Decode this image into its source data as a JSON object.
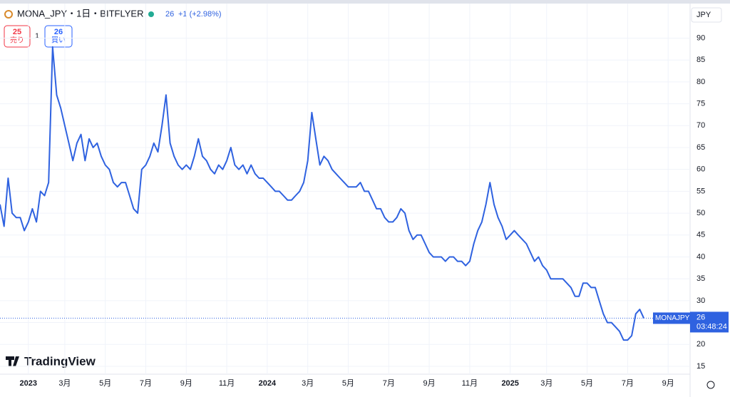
{
  "chart_data": {
    "type": "line",
    "symbol": "MONA_JPY・1日・BITFLYER",
    "last_price": 26,
    "change": "+1 (+2.98%)",
    "sell": {
      "price": 25,
      "label": "売り"
    },
    "spread": 1,
    "buy": {
      "price": 26,
      "label": "買い"
    },
    "currency": "JPY",
    "price_tag": {
      "name": "MONAJPY",
      "countdown": "03:48:24"
    },
    "logo": "TradingView",
    "color": "#2f62e0",
    "categories": [
      null,
      null,
      null,
      null,
      null,
      null,
      null,
      "2023",
      null,
      null,
      null,
      null,
      null,
      null,
      null,
      null,
      "3月",
      null,
      null,
      null,
      null,
      null,
      null,
      null,
      null,
      null,
      "5月",
      null,
      null,
      null,
      null,
      null,
      null,
      null,
      null,
      null,
      "7月",
      null,
      null,
      null,
      null,
      null,
      null,
      null,
      null,
      null,
      "9月",
      null,
      null,
      null,
      null,
      null,
      null,
      null,
      null,
      null,
      "11月",
      null,
      null,
      null,
      null,
      null,
      null,
      null,
      null,
      null,
      "2024",
      null,
      null,
      null,
      null,
      null,
      null,
      null,
      null,
      null,
      "3月",
      null,
      null,
      null,
      null,
      null,
      null,
      null,
      null,
      null,
      "5月",
      null,
      null,
      null,
      null,
      null,
      null,
      null,
      null,
      null,
      "7月",
      null,
      null,
      null,
      null,
      null,
      null,
      null,
      null,
      null,
      "9月",
      null,
      null,
      null,
      null,
      null,
      null,
      null,
      null,
      null,
      "11月",
      null,
      null,
      null,
      null,
      null,
      null,
      null,
      null,
      null,
      "2025",
      null,
      null,
      null,
      null,
      null,
      null,
      null,
      null,
      "3月",
      null,
      null,
      null,
      null,
      null,
      null,
      null,
      null,
      null,
      "5月",
      null,
      null,
      null,
      null,
      null,
      null,
      null,
      null,
      null,
      "7月",
      null,
      null,
      null,
      null,
      null,
      null,
      null,
      null,
      null,
      "9月"
    ],
    "values": [
      52,
      47,
      58,
      50,
      49,
      49,
      46,
      48,
      51,
      48,
      55,
      54,
      57,
      88,
      77,
      74,
      70,
      66,
      62,
      66,
      68,
      62,
      67,
      65,
      66,
      63,
      61,
      60,
      57,
      56,
      57,
      57,
      54,
      51,
      50,
      60,
      61,
      63,
      66,
      64,
      70,
      77,
      66,
      63,
      61,
      60,
      61,
      60,
      63,
      67,
      63,
      62,
      60,
      59,
      61,
      60,
      62,
      65,
      61,
      60,
      61,
      59,
      61,
      59,
      58,
      58,
      57,
      56,
      55,
      55,
      54,
      53,
      53,
      54,
      55,
      57,
      62,
      73,
      67,
      61,
      63,
      62,
      60,
      59,
      58,
      57,
      56,
      56,
      56,
      57,
      55,
      55,
      53,
      51,
      51,
      49,
      48,
      48,
      49,
      51,
      50,
      46,
      44,
      45,
      45,
      43,
      41,
      40,
      40,
      40,
      39,
      40,
      40,
      39,
      39,
      38,
      39,
      43,
      46,
      48,
      52,
      57,
      52,
      49,
      47,
      44,
      45,
      46,
      45,
      44,
      43,
      41,
      39,
      40,
      38,
      37,
      35,
      35,
      35,
      35,
      34,
      33,
      31,
      31,
      34,
      34,
      33,
      33,
      30,
      27,
      25,
      25,
      24,
      23,
      21,
      21,
      22,
      27,
      28,
      26,
      null,
      null,
      null,
      null,
      null,
      null
    ],
    "ylim": [
      13.2,
      97.9
    ],
    "yticks": [
      15,
      20,
      25,
      30,
      35,
      40,
      45,
      50,
      55,
      60,
      65,
      70,
      75,
      80,
      85,
      90
    ],
    "grid": true
  }
}
